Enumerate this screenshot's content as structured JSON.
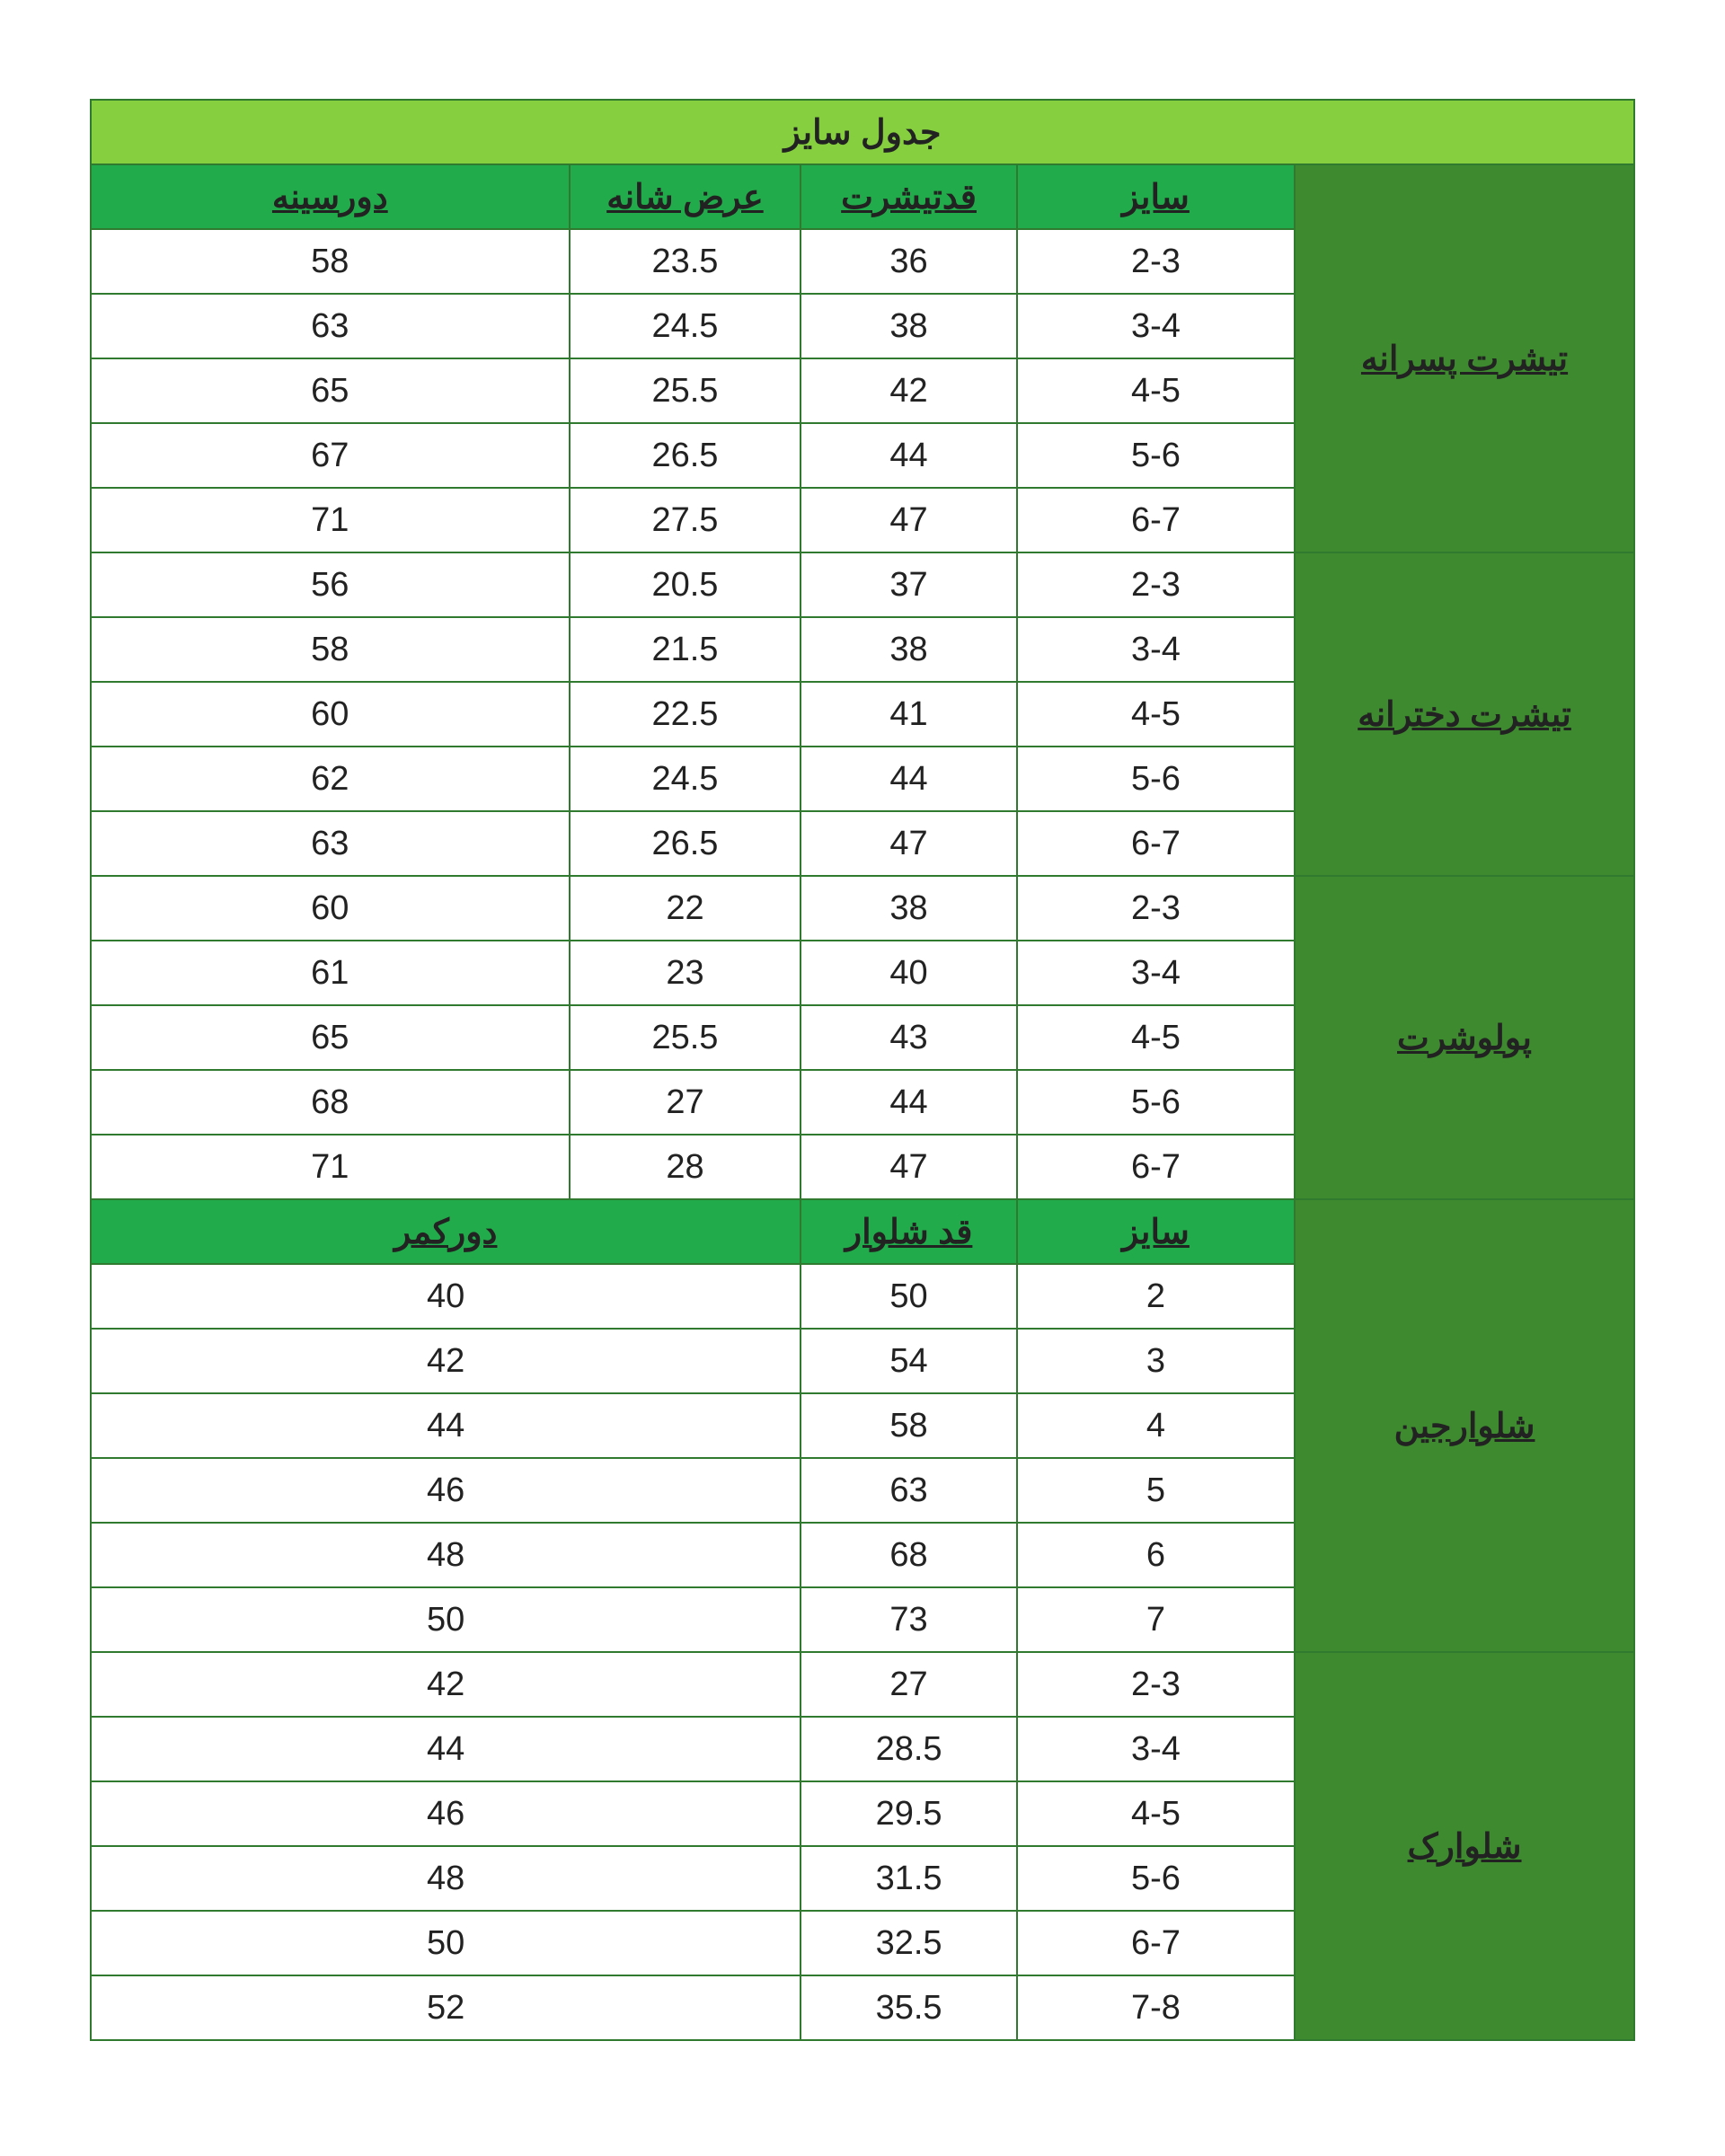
{
  "title": "جدول سایز",
  "colors": {
    "title_bg": "#86d03f",
    "header_bg": "#22ab4a",
    "group_bg": "#3e8b2f",
    "border": "#2f7a2f",
    "text": "#222222",
    "page_bg": "#ffffff"
  },
  "column_widths_pct": {
    "group": 22,
    "c1": 18,
    "c2": 14,
    "c3": 15,
    "c4": 31
  },
  "headers1": {
    "c1": "سایز",
    "c2": "قدتیشرت",
    "c3": "عرض شانه",
    "c4": "دورسینه"
  },
  "headers2": {
    "c1": "سایز",
    "c2": "قد شلوار",
    "c34": "دورکمر"
  },
  "sections_4col": [
    {
      "label": "تیشرت پسرانه",
      "rows": [
        [
          "2-3",
          "36",
          "23.5",
          "58"
        ],
        [
          "3-4",
          "38",
          "24.5",
          "63"
        ],
        [
          "4-5",
          "42",
          "25.5",
          "65"
        ],
        [
          "5-6",
          "44",
          "26.5",
          "67"
        ],
        [
          "6-7",
          "47",
          "27.5",
          "71"
        ]
      ]
    },
    {
      "label": "تیشرت دخترانه",
      "rows": [
        [
          "2-3",
          "37",
          "20.5",
          "56"
        ],
        [
          "3-4",
          "38",
          "21.5",
          "58"
        ],
        [
          "4-5",
          "41",
          "22.5",
          "60"
        ],
        [
          "5-6",
          "44",
          "24.5",
          "62"
        ],
        [
          "6-7",
          "47",
          "26.5",
          "63"
        ]
      ]
    },
    {
      "label": "پولوشرت",
      "rows": [
        [
          "2-3",
          "38",
          "22",
          "60"
        ],
        [
          "3-4",
          "40",
          "23",
          "61"
        ],
        [
          "4-5",
          "43",
          "25.5",
          "65"
        ],
        [
          "5-6",
          "44",
          "27",
          "68"
        ],
        [
          "6-7",
          "47",
          "28",
          "71"
        ]
      ]
    }
  ],
  "sections_3col": [
    {
      "label": "شلوارجین",
      "rows": [
        [
          "2",
          "50",
          "40"
        ],
        [
          "3",
          "54",
          "42"
        ],
        [
          "4",
          "58",
          "44"
        ],
        [
          "5",
          "63",
          "46"
        ],
        [
          "6",
          "68",
          "48"
        ],
        [
          "7",
          "73",
          "50"
        ]
      ]
    },
    {
      "label": "شلوارک",
      "rows": [
        [
          "2-3",
          "27",
          "42"
        ],
        [
          "3-4",
          "28.5",
          "44"
        ],
        [
          "4-5",
          "29.5",
          "46"
        ],
        [
          "5-6",
          "31.5",
          "48"
        ],
        [
          "6-7",
          "32.5",
          "50"
        ],
        [
          "7-8",
          "35.5",
          "52"
        ]
      ]
    }
  ]
}
